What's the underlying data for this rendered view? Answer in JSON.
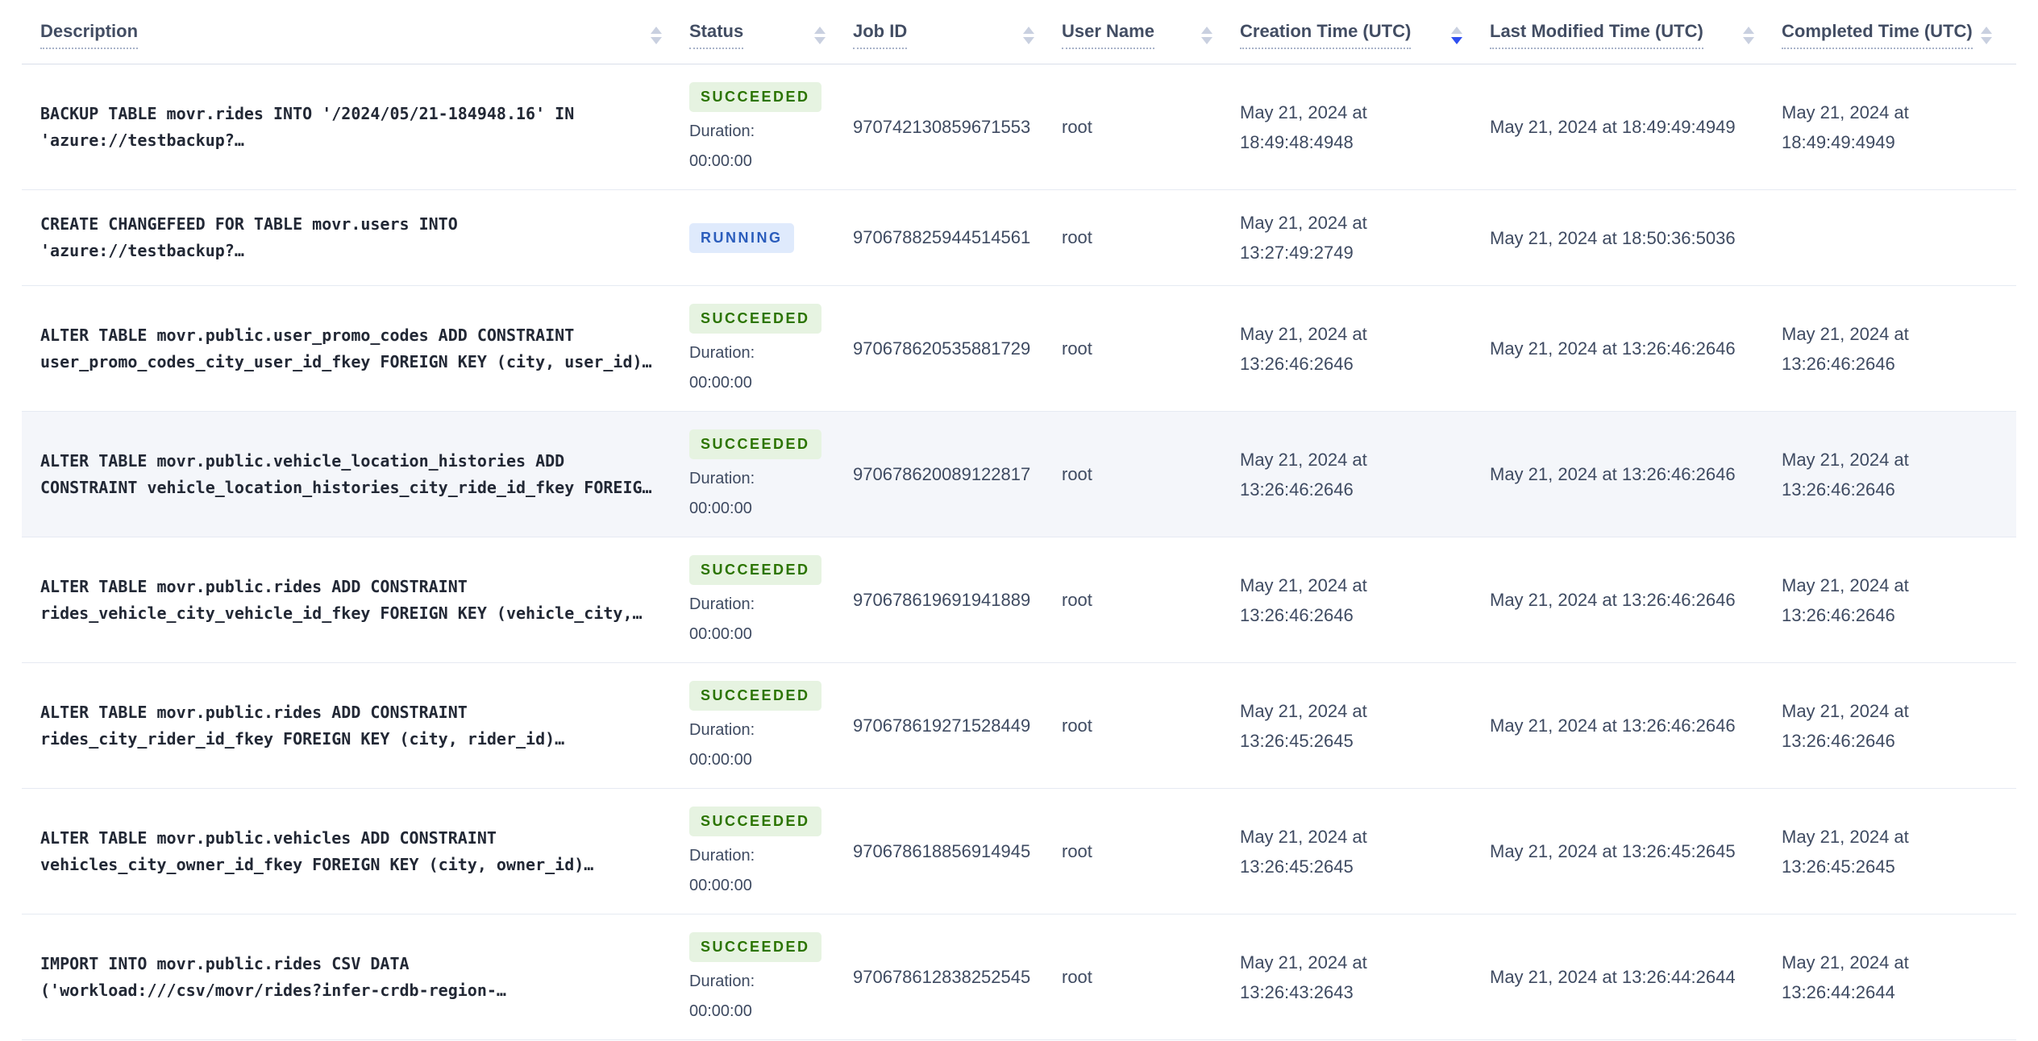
{
  "table": {
    "columns": [
      {
        "label": "Description",
        "sort": ""
      },
      {
        "label": "Status",
        "sort": ""
      },
      {
        "label": "Job ID",
        "sort": ""
      },
      {
        "label": "User Name",
        "sort": ""
      },
      {
        "label": "Creation Time (UTC)",
        "sort": "desc"
      },
      {
        "label": "Last Modified Time (UTC)",
        "sort": ""
      },
      {
        "label": "Completed Time (UTC)",
        "sort": ""
      }
    ],
    "rows": [
      {
        "description_line1": "BACKUP TABLE movr.rides INTO '/2024/05/21-184948.16' IN",
        "description_line2": "'azure://testbackup?…",
        "status": "SUCCEEDED",
        "duration_label": "Duration:",
        "duration": "00:00:00",
        "job_id": "970742130859671553",
        "user": "root",
        "created": "May 21, 2024 at 18:49:48:4948",
        "modified": "May 21, 2024 at 18:49:49:4949",
        "completed": "May 21, 2024 at 18:49:49:4949",
        "highlighted": false
      },
      {
        "description_line1": "CREATE CHANGEFEED FOR TABLE movr.users INTO",
        "description_line2": "'azure://testbackup?…",
        "status": "RUNNING",
        "duration_label": "",
        "duration": "",
        "job_id": "970678825944514561",
        "user": "root",
        "created": "May 21, 2024 at 13:27:49:2749",
        "modified": "May 21, 2024 at 18:50:36:5036",
        "completed": "",
        "highlighted": false
      },
      {
        "description_line1": "ALTER TABLE movr.public.user_promo_codes ADD CONSTRAINT",
        "description_line2": "user_promo_codes_city_user_id_fkey FOREIGN KEY (city, user_id)…",
        "status": "SUCCEEDED",
        "duration_label": "Duration:",
        "duration": "00:00:00",
        "job_id": "970678620535881729",
        "user": "root",
        "created": "May 21, 2024 at 13:26:46:2646",
        "modified": "May 21, 2024 at 13:26:46:2646",
        "completed": "May 21, 2024 at 13:26:46:2646",
        "highlighted": false
      },
      {
        "description_line1": "ALTER TABLE movr.public.vehicle_location_histories ADD",
        "description_line2": "CONSTRAINT vehicle_location_histories_city_ride_id_fkey FOREIG…",
        "status": "SUCCEEDED",
        "duration_label": "Duration:",
        "duration": "00:00:00",
        "job_id": "970678620089122817",
        "user": "root",
        "created": "May 21, 2024 at 13:26:46:2646",
        "modified": "May 21, 2024 at 13:26:46:2646",
        "completed": "May 21, 2024 at 13:26:46:2646",
        "highlighted": true
      },
      {
        "description_line1": "ALTER TABLE movr.public.rides ADD CONSTRAINT",
        "description_line2": "rides_vehicle_city_vehicle_id_fkey FOREIGN KEY (vehicle_city,…",
        "status": "SUCCEEDED",
        "duration_label": "Duration:",
        "duration": "00:00:00",
        "job_id": "970678619691941889",
        "user": "root",
        "created": "May 21, 2024 at 13:26:46:2646",
        "modified": "May 21, 2024 at 13:26:46:2646",
        "completed": "May 21, 2024 at 13:26:46:2646",
        "highlighted": false
      },
      {
        "description_line1": "ALTER TABLE movr.public.rides ADD CONSTRAINT",
        "description_line2": "rides_city_rider_id_fkey FOREIGN KEY (city, rider_id)…",
        "status": "SUCCEEDED",
        "duration_label": "Duration:",
        "duration": "00:00:00",
        "job_id": "970678619271528449",
        "user": "root",
        "created": "May 21, 2024 at 13:26:45:2645",
        "modified": "May 21, 2024 at 13:26:46:2646",
        "completed": "May 21, 2024 at 13:26:46:2646",
        "highlighted": false
      },
      {
        "description_line1": "ALTER TABLE movr.public.vehicles ADD CONSTRAINT",
        "description_line2": "vehicles_city_owner_id_fkey FOREIGN KEY (city, owner_id)…",
        "status": "SUCCEEDED",
        "duration_label": "Duration:",
        "duration": "00:00:00",
        "job_id": "970678618856914945",
        "user": "root",
        "created": "May 21, 2024 at 13:26:45:2645",
        "modified": "May 21, 2024 at 13:26:45:2645",
        "completed": "May 21, 2024 at 13:26:45:2645",
        "highlighted": false
      },
      {
        "description_line1": "IMPORT INTO movr.public.rides CSV DATA",
        "description_line2": "('workload:///csv/movr/rides?infer-crdb-region-…",
        "status": "SUCCEEDED",
        "duration_label": "Duration:",
        "duration": "00:00:00",
        "job_id": "970678612838252545",
        "user": "root",
        "created": "May 21, 2024 at 13:26:43:2643",
        "modified": "May 21, 2024 at 13:26:44:2644",
        "completed": "May 21, 2024 at 13:26:44:2644",
        "highlighted": false
      }
    ]
  },
  "colors": {
    "succeeded_bg": "#e6f3e1",
    "succeeded_text": "#2b7400",
    "running_bg": "#dfeafc",
    "running_text": "#2b5dbc",
    "sort_idle": "#c9d0e0",
    "sort_active": "#2f4ff0",
    "row_highlight": "#f4f6fa"
  }
}
